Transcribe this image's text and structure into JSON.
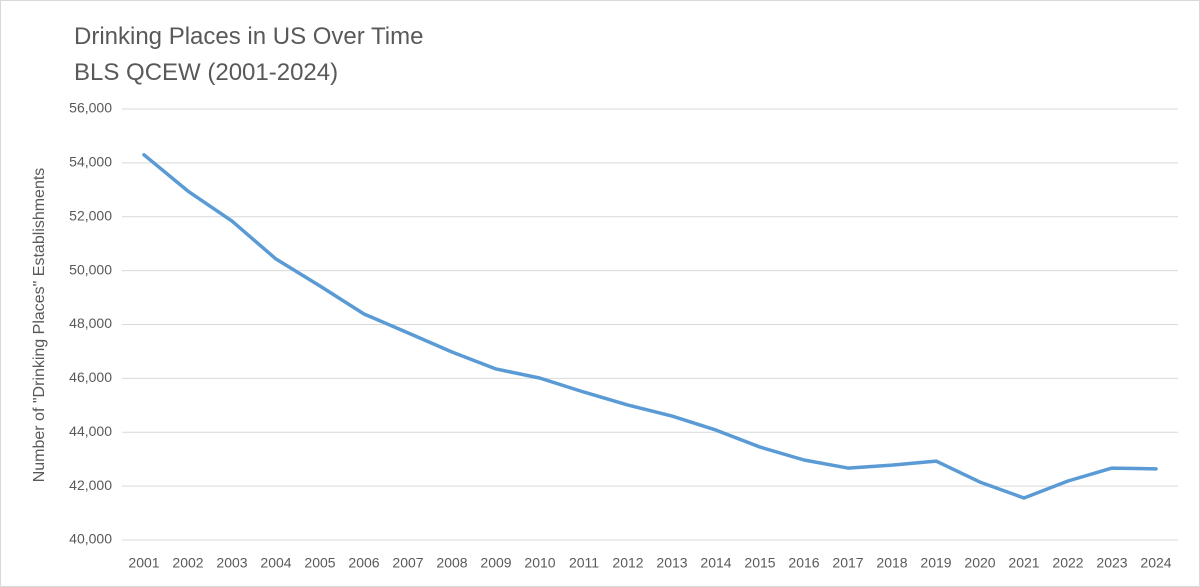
{
  "chart_data": {
    "type": "line",
    "title": "Drinking Places in US Over Time",
    "subtitle": "BLS QCEW (2001-2024)",
    "y_label": "Number of \"Drinking Places\" Establishments",
    "categories": [
      "2001",
      "2002",
      "2003",
      "2004",
      "2005",
      "2006",
      "2007",
      "2008",
      "2009",
      "2010",
      "2011",
      "2012",
      "2013",
      "2014",
      "2015",
      "2016",
      "2017",
      "2018",
      "2019",
      "2020",
      "2021",
      "2022",
      "2023",
      "2024"
    ],
    "series": [
      {
        "name": "Drinking Places",
        "color": "#5b9bd5",
        "values": [
          54300,
          52950,
          51840,
          50430,
          49430,
          48390,
          47690,
          46980,
          46350,
          46010,
          45490,
          45010,
          44600,
          44080,
          43450,
          42970,
          42670,
          42780,
          42930,
          42150,
          41560,
          42190,
          42670,
          42640
        ]
      }
    ],
    "ylim": [
      40000,
      56000
    ],
    "yticks": [
      {
        "value": 40000,
        "label": "40,000"
      },
      {
        "value": 42000,
        "label": "42,000"
      },
      {
        "value": 44000,
        "label": "44,000"
      },
      {
        "value": 46000,
        "label": "46,000"
      },
      {
        "value": 48000,
        "label": "48,000"
      },
      {
        "value": 50000,
        "label": "50,000"
      },
      {
        "value": 52000,
        "label": "52,000"
      },
      {
        "value": 54000,
        "label": "54,000"
      },
      {
        "value": 56000,
        "label": "56,000"
      }
    ],
    "grid": true
  }
}
